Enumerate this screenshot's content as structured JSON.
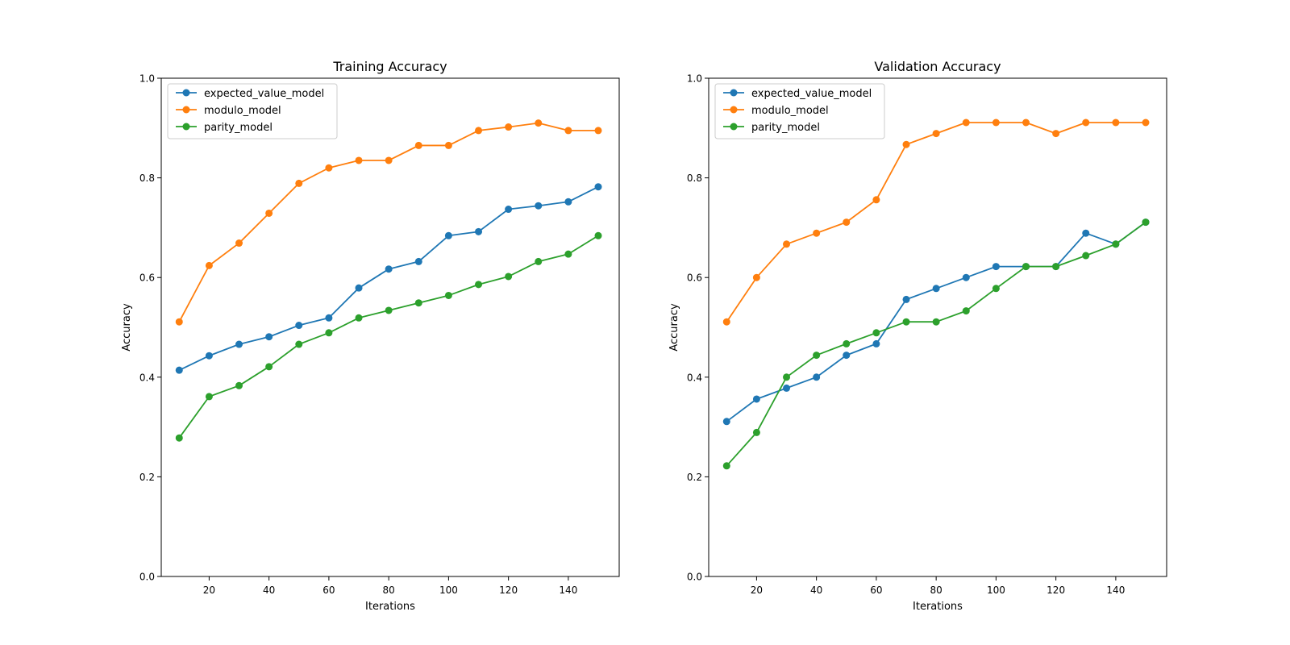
{
  "chart_data": [
    {
      "type": "line",
      "title": "Training Accuracy",
      "xlabel": "Iterations",
      "ylabel": "Accuracy",
      "xlim": [
        4,
        157
      ],
      "ylim": [
        0.0,
        1.0
      ],
      "xticks": [
        20,
        40,
        60,
        80,
        100,
        120,
        140
      ],
      "yticks": [
        0.0,
        0.2,
        0.4,
        0.6,
        0.8,
        1.0
      ],
      "ytick_labels": [
        "0.0",
        "0.2",
        "0.4",
        "0.6",
        "0.8",
        "1.0"
      ],
      "grid": false,
      "legend_position": "top-left",
      "x": [
        10,
        20,
        30,
        40,
        50,
        60,
        70,
        80,
        90,
        100,
        110,
        120,
        130,
        140,
        150
      ],
      "series": [
        {
          "name": "expected_value_model",
          "color": "#1f77b4",
          "marker": "circle",
          "values": [
            0.414,
            0.443,
            0.466,
            0.481,
            0.504,
            0.519,
            0.579,
            0.617,
            0.632,
            0.684,
            0.692,
            0.737,
            0.744,
            0.752,
            0.782
          ]
        },
        {
          "name": "modulo_model",
          "color": "#ff7f0e",
          "marker": "circle",
          "values": [
            0.511,
            0.624,
            0.669,
            0.729,
            0.789,
            0.82,
            0.835,
            0.835,
            0.865,
            0.865,
            0.895,
            0.902,
            0.91,
            0.895,
            0.895
          ]
        },
        {
          "name": "parity_model",
          "color": "#2ca02c",
          "marker": "circle",
          "values": [
            0.278,
            0.361,
            0.383,
            0.421,
            0.466,
            0.489,
            0.519,
            0.534,
            0.549,
            0.564,
            0.586,
            0.602,
            0.632,
            0.647,
            0.684
          ]
        }
      ]
    },
    {
      "type": "line",
      "title": "Validation Accuracy",
      "xlabel": "Iterations",
      "ylabel": "Accuracy",
      "xlim": [
        4,
        157
      ],
      "ylim": [
        0.0,
        1.0
      ],
      "xticks": [
        20,
        40,
        60,
        80,
        100,
        120,
        140
      ],
      "yticks": [
        0.0,
        0.2,
        0.4,
        0.6,
        0.8,
        1.0
      ],
      "ytick_labels": [
        "0.0",
        "0.2",
        "0.4",
        "0.6",
        "0.8",
        "1.0"
      ],
      "grid": false,
      "legend_position": "top-left",
      "x": [
        10,
        20,
        30,
        40,
        50,
        60,
        70,
        80,
        90,
        100,
        110,
        120,
        130,
        140,
        150
      ],
      "series": [
        {
          "name": "expected_value_model",
          "color": "#1f77b4",
          "marker": "circle",
          "values": [
            0.311,
            0.356,
            0.378,
            0.4,
            0.444,
            0.467,
            0.556,
            0.578,
            0.6,
            0.622,
            0.622,
            0.622,
            0.689,
            0.667,
            0.711
          ]
        },
        {
          "name": "modulo_model",
          "color": "#ff7f0e",
          "marker": "circle",
          "values": [
            0.511,
            0.6,
            0.667,
            0.689,
            0.711,
            0.756,
            0.867,
            0.889,
            0.911,
            0.911,
            0.911,
            0.889,
            0.911,
            0.911,
            0.911
          ]
        },
        {
          "name": "parity_model",
          "color": "#2ca02c",
          "marker": "circle",
          "values": [
            0.222,
            0.289,
            0.4,
            0.444,
            0.467,
            0.489,
            0.511,
            0.511,
            0.533,
            0.578,
            0.622,
            0.622,
            0.644,
            0.667,
            0.711
          ]
        }
      ]
    }
  ]
}
